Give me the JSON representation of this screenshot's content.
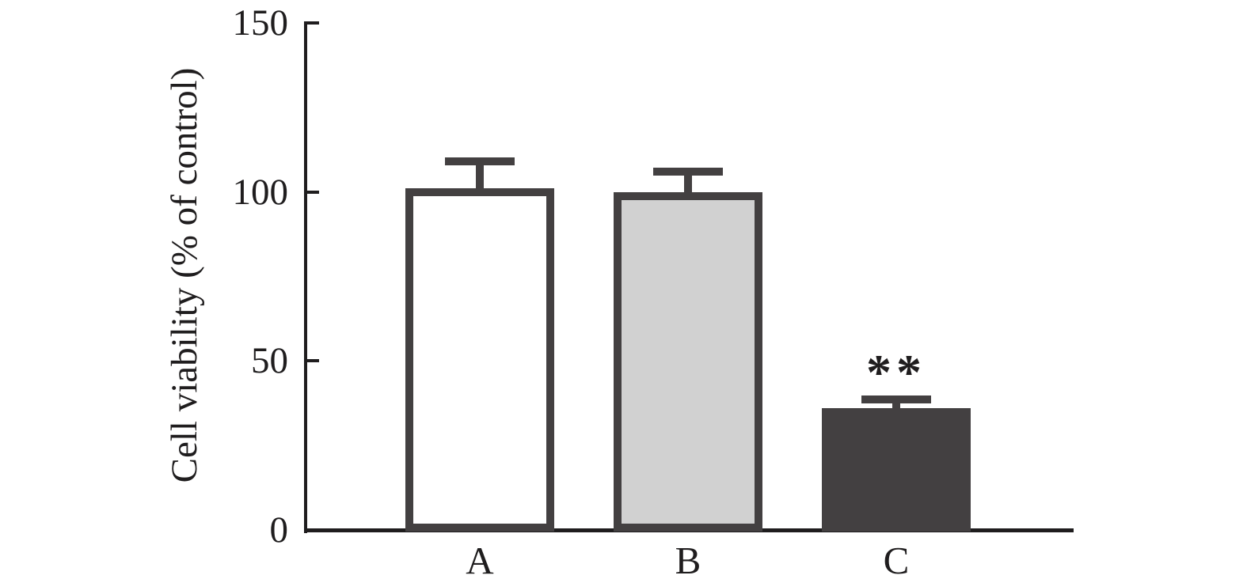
{
  "figure": {
    "background": "#ffffff"
  },
  "chart_data": {
    "type": "bar",
    "title": "",
    "xlabel": "",
    "ylabel": "Cell viability (% of control)",
    "ylim": [
      0,
      150
    ],
    "yticks": [
      0,
      50,
      100,
      150
    ],
    "grid": false,
    "legend": "none",
    "categories": [
      "A",
      "B",
      "C"
    ],
    "series": [
      {
        "name": "Cell viability",
        "values": [
          101,
          100,
          36
        ],
        "errors_upper": [
          8,
          6,
          2.5
        ]
      }
    ],
    "bar_fills": [
      "#ffffff",
      "#d1d1d1",
      "#434041"
    ],
    "bar_border_color": "#434041",
    "error_bar_color": "#434041",
    "axis_color": "#1f1d1e",
    "text_color": "#1f1d1e",
    "annotations": [
      {
        "category": "C",
        "text": "**"
      }
    ]
  }
}
